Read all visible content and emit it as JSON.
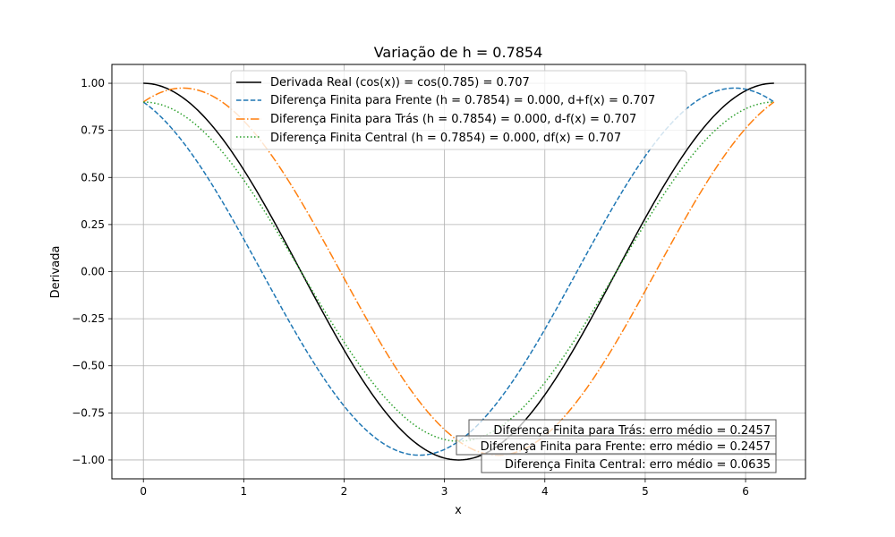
{
  "chart_data": {
    "type": "line",
    "title": "Variação de h = 0.7854",
    "xlabel": "x",
    "ylabel": "Derivada",
    "xlim": [
      -0.314,
      6.597
    ],
    "ylim": [
      -1.1,
      1.1
    ],
    "xticks": [
      0,
      1,
      2,
      3,
      4,
      5,
      6
    ],
    "xtick_labels": [
      "0",
      "1",
      "2",
      "3",
      "4",
      "5",
      "6"
    ],
    "yticks": [
      -1.0,
      -0.75,
      -0.5,
      -0.25,
      0.0,
      0.25,
      0.5,
      0.75,
      1.0
    ],
    "ytick_labels": [
      "−1.00",
      "−0.75",
      "−0.50",
      "−0.25",
      "0.00",
      "0.25",
      "0.50",
      "0.75",
      "1.00"
    ],
    "grid": true,
    "legend_position": "top-center",
    "h": 0.7854,
    "x_range": [
      0,
      6.2832
    ],
    "series": [
      {
        "name": "Derivada Real (cos(x)) = cos(0.785) = 0.707",
        "formula": "cos(x)",
        "color": "#000000",
        "dash": "solid"
      },
      {
        "name": "Diferença Finita para Frente (h = 0.7854) = 0.000, d+f(x) = 0.707",
        "formula": "(sin(x+h)-sin(x))/h",
        "color": "#1f77b4",
        "dash": "dashed"
      },
      {
        "name": "Diferença Finita para Trás (h = 0.7854) = 0.000, d-f(x) = 0.707",
        "formula": "(sin(x)-sin(x-h))/h",
        "color": "#ff7f0e",
        "dash": "dashdot"
      },
      {
        "name": "Diferença Finita Central (h = 0.7854) = 0.000, df(x) = 0.707",
        "formula": "(sin(x+h)-sin(x-h))/(2h)",
        "color": "#2ca02c",
        "dash": "dotted"
      }
    ],
    "annotations": [
      "Diferença Finita para Trás: erro médio = 0.2457",
      "Diferença Finita para Frente: erro médio = 0.2457",
      "Diferença Finita Central: erro médio = 0.0635"
    ]
  }
}
